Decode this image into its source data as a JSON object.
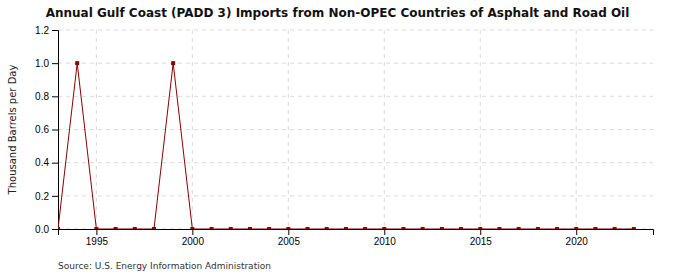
{
  "chart_data": {
    "type": "line",
    "title": "Annual Gulf Coast (PADD 3) Imports from Non-OPEC Countries of Asphalt and Road Oil",
    "y_label": "Thousand Barrels per Day",
    "annotations": [
      "Source: U.S. Energy Information Administration"
    ],
    "x": [
      1993,
      1994,
      1995,
      1996,
      1997,
      1998,
      1999,
      2000,
      2001,
      2002,
      2003,
      2004,
      2005,
      2006,
      2007,
      2008,
      2009,
      2010,
      2011,
      2012,
      2013,
      2014,
      2015,
      2016,
      2017,
      2018,
      2019,
      2020,
      2021,
      2022,
      2023
    ],
    "values": [
      0,
      1.0,
      0,
      0,
      0,
      0,
      1.0,
      0,
      0,
      0,
      0,
      0,
      0,
      0,
      0,
      0,
      0,
      0,
      0,
      0,
      0,
      0,
      0,
      0,
      0,
      0,
      0,
      0,
      0,
      0,
      0
    ],
    "color": "#8b0000",
    "marker": "square",
    "xlim": [
      1993,
      2024
    ],
    "ylim": [
      0.0,
      1.2
    ],
    "xticks": [
      1995,
      2000,
      2005,
      2010,
      2015,
      2020
    ],
    "yticks": [
      {
        "value": 0.0,
        "label": "0.0"
      },
      0.2,
      0.4,
      0.6,
      0.8,
      {
        "value": 1.0,
        "label": "1.0"
      },
      1.2
    ],
    "grid": true
  }
}
